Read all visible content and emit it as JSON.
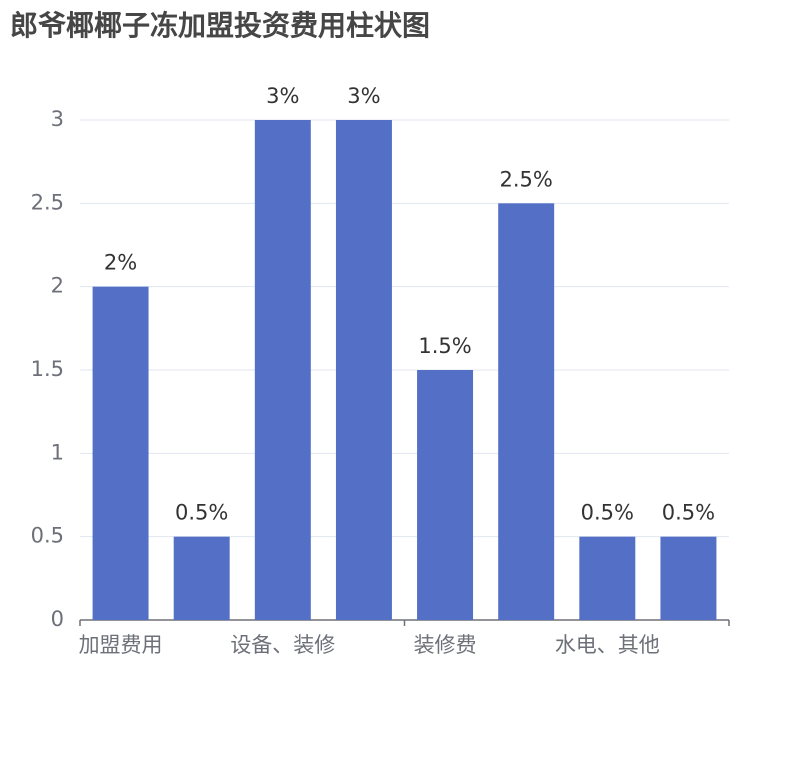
{
  "chart_data": {
    "type": "bar",
    "title": "郎爷椰椰子冻加盟投资费用柱状图",
    "categories": [
      "加盟费用",
      null,
      "设备、装修",
      null,
      "装修费",
      null,
      "水电、其他",
      null
    ],
    "values": [
      2,
      0.5,
      3,
      3,
      1.5,
      2.5,
      0.5,
      0.5
    ],
    "value_labels": [
      "2%",
      "0.5%",
      "3%",
      "3%",
      "1.5%",
      "2.5%",
      "0.5%",
      "0.5%"
    ],
    "color": "#5470c6",
    "ylim": [
      0,
      3
    ],
    "yticks": [
      0,
      0.5,
      1,
      1.5,
      2,
      2.5,
      3
    ],
    "grid": true
  }
}
